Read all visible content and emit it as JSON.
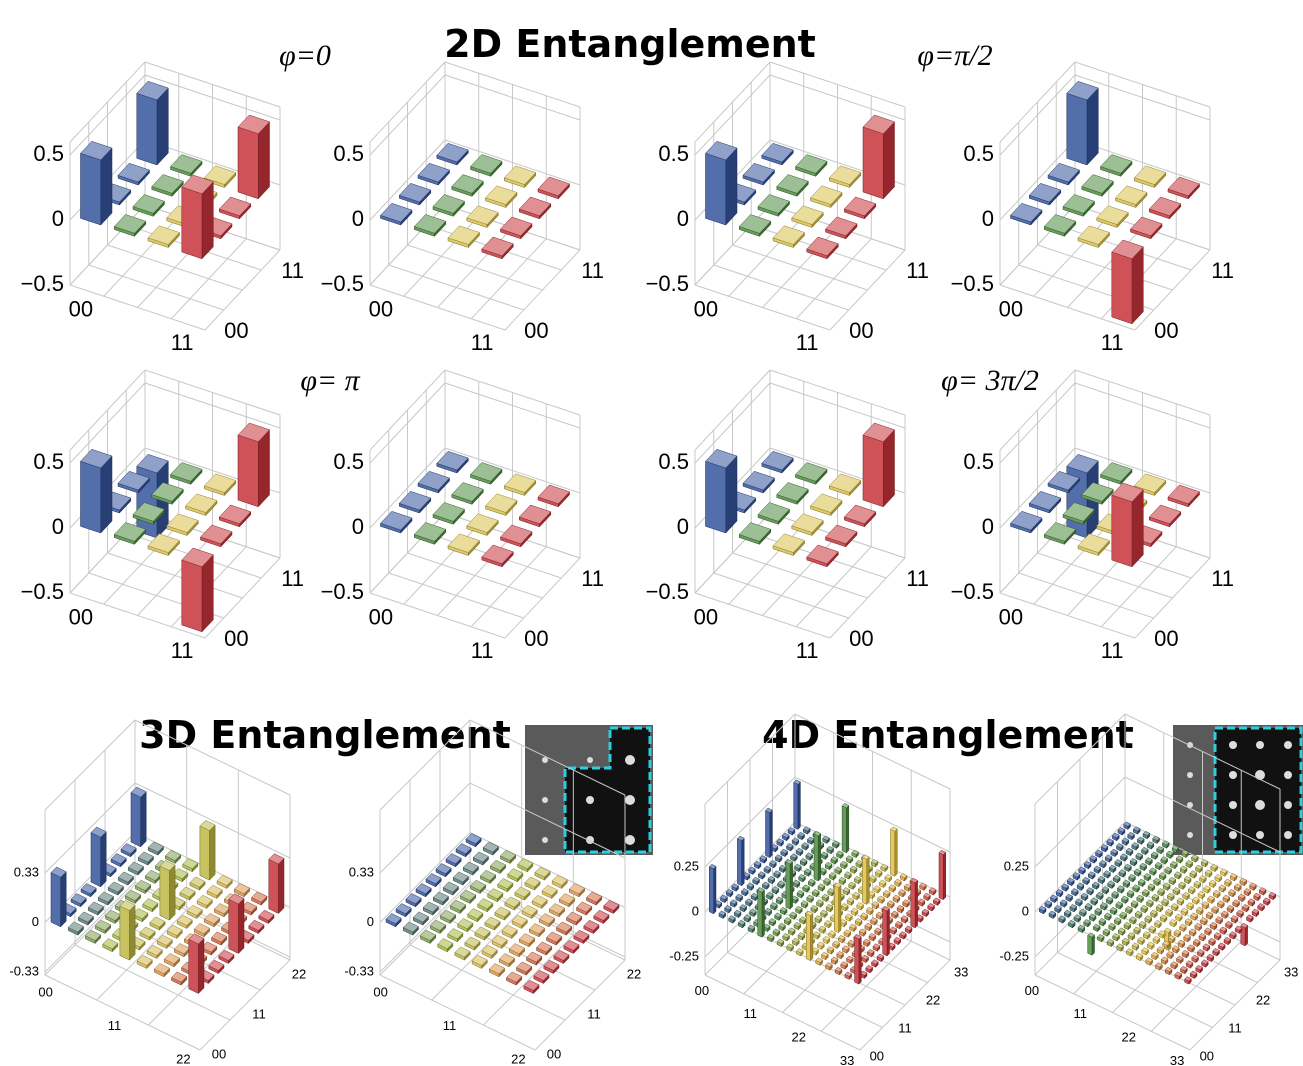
{
  "headings": [
    "2D Entanglement",
    "3D Entanglement",
    "4D Entanglement"
  ],
  "chart_data": [
    {
      "type": "bar3d",
      "title": "φ=0",
      "categories": [
        "00",
        null,
        null,
        "11"
      ],
      "zlim": [
        -0.5,
        0.6
      ],
      "zticks": [
        {
          "value": -0.5,
          "label": "−0.5"
        },
        0,
        0.5
      ],
      "colors": [
        "#34549c",
        "#4d8a3f",
        "#d9c04a",
        "#c7343a"
      ],
      "values": [
        [
          0.5,
          0,
          0,
          0.5
        ],
        [
          0,
          0,
          0,
          0
        ],
        [
          0,
          0,
          0,
          0
        ],
        [
          0.5,
          0,
          0,
          0.5
        ]
      ]
    },
    {
      "type": "bar3d",
      "categories": [
        "00",
        null,
        null,
        "11"
      ],
      "zlim": [
        -0.5,
        0.6
      ],
      "zticks": [
        {
          "value": -0.5,
          "label": "−0.5"
        },
        0,
        0.5
      ],
      "colors": [
        "#34549c",
        "#4d8a3f",
        "#d9c04a",
        "#c7343a"
      ],
      "values": [
        [
          0,
          0,
          0,
          0
        ],
        [
          0,
          0,
          0,
          0
        ],
        [
          0,
          0,
          0,
          0
        ],
        [
          0,
          0,
          0,
          0
        ]
      ]
    },
    {
      "type": "bar3d",
      "title": "φ=π/2",
      "categories": [
        "00",
        null,
        null,
        "11"
      ],
      "zlim": [
        -0.5,
        0.6
      ],
      "zticks": [
        {
          "value": -0.5,
          "label": "−0.5"
        },
        0,
        0.5
      ],
      "colors": [
        "#34549c",
        "#4d8a3f",
        "#d9c04a",
        "#c7343a"
      ],
      "values": [
        [
          0.5,
          0,
          0,
          0
        ],
        [
          0,
          0,
          0,
          0
        ],
        [
          0,
          0,
          0,
          0
        ],
        [
          0,
          0,
          0,
          0.5
        ]
      ]
    },
    {
      "type": "bar3d",
      "categories": [
        "00",
        null,
        null,
        "11"
      ],
      "zlim": [
        -0.5,
        0.6
      ],
      "zticks": [
        {
          "value": -0.5,
          "label": "−0.5"
        },
        0,
        0.5
      ],
      "colors": [
        "#34549c",
        "#4d8a3f",
        "#d9c04a",
        "#c7343a"
      ],
      "values": [
        [
          0,
          0,
          0,
          0.5
        ],
        [
          0,
          0,
          0,
          0
        ],
        [
          0,
          0,
          0,
          0
        ],
        [
          -0.5,
          0,
          0,
          0
        ]
      ]
    },
    {
      "type": "bar3d",
      "title": "φ= π",
      "categories": [
        "00",
        null,
        null,
        "11"
      ],
      "zlim": [
        -0.5,
        0.6
      ],
      "zticks": [
        {
          "value": -0.5,
          "label": "−0.5"
        },
        0,
        0.5
      ],
      "colors": [
        "#34549c",
        "#4d8a3f",
        "#d9c04a",
        "#c7343a"
      ],
      "values": [
        [
          0.5,
          0,
          0,
          -0.5
        ],
        [
          0,
          0,
          0,
          0
        ],
        [
          0,
          0,
          0,
          0
        ],
        [
          -0.5,
          0,
          0,
          0.5
        ]
      ]
    },
    {
      "type": "bar3d",
      "categories": [
        "00",
        null,
        null,
        "11"
      ],
      "zlim": [
        -0.5,
        0.6
      ],
      "zticks": [
        {
          "value": -0.5,
          "label": "−0.5"
        },
        0,
        0.5
      ],
      "colors": [
        "#34549c",
        "#4d8a3f",
        "#d9c04a",
        "#c7343a"
      ],
      "values": [
        [
          0,
          0,
          0,
          0
        ],
        [
          0,
          0,
          0,
          0
        ],
        [
          0,
          0,
          0,
          0
        ],
        [
          0,
          0,
          0,
          0
        ]
      ]
    },
    {
      "type": "bar3d",
      "title": "φ= 3π/2",
      "categories": [
        "00",
        null,
        null,
        "11"
      ],
      "zlim": [
        -0.5,
        0.6
      ],
      "zticks": [
        {
          "value": -0.5,
          "label": "−0.5"
        },
        0,
        0.5
      ],
      "colors": [
        "#34549c",
        "#4d8a3f",
        "#d9c04a",
        "#c7343a"
      ],
      "values": [
        [
          0.5,
          0,
          0,
          0
        ],
        [
          0,
          0,
          0,
          0
        ],
        [
          0,
          0,
          0,
          0
        ],
        [
          0,
          0,
          0,
          0.5
        ]
      ]
    },
    {
      "type": "bar3d",
      "categories": [
        "00",
        null,
        null,
        "11"
      ],
      "zlim": [
        -0.5,
        0.6
      ],
      "zticks": [
        {
          "value": -0.5,
          "label": "−0.5"
        },
        0,
        0.5
      ],
      "colors": [
        "#34549c",
        "#4d8a3f",
        "#d9c04a",
        "#c7343a"
      ],
      "values": [
        [
          0,
          0,
          0,
          -0.5
        ],
        [
          0,
          0,
          0,
          0
        ],
        [
          0,
          0,
          0,
          0
        ],
        [
          0.5,
          0,
          0,
          0
        ]
      ]
    },
    {
      "type": "bar3d",
      "categories": [
        "00",
        null,
        null,
        null,
        "11",
        null,
        null,
        null,
        "22"
      ],
      "zlim": [
        -0.35,
        0.75
      ],
      "zticks": [
        {
          "value": -0.33,
          "label": "-0.33"
        },
        0,
        0.33
      ],
      "colors": [
        "#34549c",
        "#9ab83a",
        "#e0b850",
        "#c7343a"
      ],
      "values": [
        [
          0.33,
          0,
          0,
          0,
          0.33,
          0,
          0,
          0,
          0.33
        ],
        [
          0,
          0,
          0,
          0,
          0,
          0,
          0,
          0,
          0
        ],
        [
          0,
          0,
          0,
          0,
          0,
          0,
          0,
          0,
          0
        ],
        [
          0,
          0,
          0,
          0,
          0,
          0,
          0,
          0,
          0
        ],
        [
          0.33,
          0,
          0,
          0,
          0.33,
          0,
          0,
          0,
          0.33
        ],
        [
          0,
          0,
          0,
          0,
          0,
          0,
          0,
          0,
          0
        ],
        [
          0,
          0,
          0,
          0,
          0,
          0,
          0,
          0,
          0
        ],
        [
          0,
          0,
          0,
          0,
          0,
          0,
          0,
          0,
          0
        ],
        [
          0.33,
          0,
          0,
          0,
          0.33,
          0,
          0,
          0,
          0.33
        ]
      ]
    },
    {
      "type": "bar3d",
      "categories": [
        "00",
        null,
        null,
        null,
        "11",
        null,
        null,
        null,
        "22"
      ],
      "zlim": [
        -0.35,
        0.75
      ],
      "zticks": [
        {
          "value": -0.33,
          "label": "-0.33"
        },
        0,
        0.33
      ],
      "colors": [
        "#34549c",
        "#9ab83a",
        "#e0b850",
        "#c7343a"
      ],
      "values": [
        [
          0,
          0,
          0,
          0,
          0,
          0,
          0,
          0,
          0
        ],
        [
          0,
          0,
          0,
          0,
          0,
          0,
          0,
          0,
          0
        ],
        [
          0,
          0,
          0,
          0,
          0,
          0,
          0,
          0,
          0
        ],
        [
          0,
          0,
          0,
          0,
          0,
          0,
          0,
          0,
          0
        ],
        [
          0,
          0,
          0,
          0,
          0,
          0,
          0,
          0,
          0
        ],
        [
          0,
          0,
          0,
          0,
          0,
          0,
          0,
          0,
          0
        ],
        [
          0,
          0,
          0,
          0,
          0,
          0,
          0,
          0,
          0
        ],
        [
          0,
          0,
          0,
          0,
          0,
          0,
          0,
          0,
          0
        ],
        [
          0,
          0,
          0,
          0,
          0,
          0,
          0,
          0,
          0
        ]
      ]
    },
    {
      "type": "bar3d",
      "categories": [
        "00",
        null,
        null,
        null,
        null,
        "11",
        null,
        null,
        null,
        null,
        "22",
        null,
        null,
        null,
        null,
        "33"
      ],
      "zlim": [
        -0.35,
        0.6
      ],
      "zticks": [
        {
          "value": -0.25,
          "label": "-0.25"
        },
        0,
        0.25
      ],
      "colors": [
        "#34549c",
        "#4d8a3f",
        "#e0c040",
        "#c7343a"
      ],
      "values": [
        [
          0.25,
          0,
          0,
          0,
          0,
          0.25,
          0,
          0,
          0,
          0,
          0.25,
          0,
          0,
          0,
          0,
          0.25
        ],
        [
          0,
          0,
          0,
          0,
          0,
          0,
          0,
          0,
          0,
          0,
          0,
          0,
          0,
          0,
          0,
          0
        ],
        [
          0,
          0,
          0,
          0,
          0,
          0,
          0,
          0,
          0,
          0,
          0,
          0,
          0,
          0,
          0,
          0
        ],
        [
          0,
          0,
          0,
          0,
          0,
          0,
          0,
          0,
          0,
          0,
          0,
          0,
          0,
          0,
          0,
          0
        ],
        [
          0,
          0,
          0,
          0,
          0,
          0,
          0,
          0,
          0,
          0,
          0,
          0,
          0,
          0,
          0,
          0
        ],
        [
          0.25,
          0,
          0,
          0,
          0,
          0.25,
          0,
          0,
          0,
          0,
          0.25,
          0,
          0,
          0,
          0,
          0.25
        ],
        [
          0,
          0,
          0,
          0,
          0,
          0,
          0,
          0,
          0,
          0,
          0,
          0,
          0,
          0,
          0,
          0
        ],
        [
          0,
          0,
          0,
          0,
          0,
          0,
          0,
          0,
          0,
          0,
          0,
          0,
          0,
          0,
          0,
          0
        ],
        [
          0,
          0,
          0,
          0,
          0,
          0,
          0,
          0,
          0,
          0,
          0,
          0,
          0,
          0,
          0,
          0
        ],
        [
          0,
          0,
          0,
          0,
          0,
          0,
          0,
          0,
          0,
          0,
          0,
          0,
          0,
          0,
          0,
          0
        ],
        [
          0.25,
          0,
          0,
          0,
          0,
          0.25,
          0,
          0,
          0,
          0,
          0.25,
          0,
          0,
          0,
          0,
          0.25
        ],
        [
          0,
          0,
          0,
          0,
          0,
          0,
          0,
          0,
          0,
          0,
          0,
          0,
          0,
          0,
          0,
          0
        ],
        [
          0,
          0,
          0,
          0,
          0,
          0,
          0,
          0,
          0,
          0,
          0,
          0,
          0,
          0,
          0,
          0
        ],
        [
          0,
          0,
          0,
          0,
          0,
          0,
          0,
          0,
          0,
          0,
          0,
          0,
          0,
          0,
          0,
          0
        ],
        [
          0,
          0,
          0,
          0,
          0,
          0,
          0,
          0,
          0,
          0,
          0,
          0,
          0,
          0,
          0,
          0
        ],
        [
          0.25,
          0,
          0,
          0,
          0,
          0.25,
          0,
          0,
          0,
          0,
          0.25,
          0,
          0,
          0,
          0,
          0.25
        ]
      ]
    },
    {
      "type": "bar3d",
      "categories": [
        "00",
        null,
        null,
        null,
        null,
        "11",
        null,
        null,
        null,
        null,
        "22",
        null,
        null,
        null,
        null,
        "33"
      ],
      "zlim": [
        -0.35,
        0.6
      ],
      "zticks": [
        {
          "value": -0.25,
          "label": "-0.25"
        },
        0,
        0.25
      ],
      "colors": [
        "#34549c",
        "#4d8a3f",
        "#e0c040",
        "#c7343a"
      ],
      "values": [
        [
          0,
          0,
          0,
          0,
          0,
          0,
          0,
          0,
          0,
          0,
          0,
          0,
          0,
          0,
          0,
          0
        ],
        [
          0,
          0,
          0,
          0,
          0,
          0,
          0,
          0,
          0,
          0,
          0,
          0,
          0,
          0,
          0,
          0
        ],
        [
          0,
          0,
          0,
          0,
          0,
          0,
          0,
          0,
          0,
          0,
          0,
          0,
          0,
          0,
          0,
          0
        ],
        [
          0,
          0,
          0,
          0,
          0,
          0,
          0,
          0,
          0,
          0,
          0,
          0,
          0,
          0,
          0,
          0
        ],
        [
          0,
          0,
          0,
          0,
          0,
          0,
          0,
          0,
          0,
          0,
          0,
          0,
          0,
          0,
          0,
          0
        ],
        [
          -0.1,
          0,
          0,
          0,
          0,
          0,
          0,
          0,
          0,
          0,
          0,
          0,
          0,
          0,
          0,
          0
        ],
        [
          0,
          0,
          0,
          0,
          0,
          0,
          0,
          0,
          0,
          0,
          0,
          0,
          0,
          0,
          0,
          0
        ],
        [
          0,
          0,
          0,
          0,
          0,
          0,
          0,
          0,
          0,
          0,
          0,
          0,
          0,
          0,
          0,
          0
        ],
        [
          0,
          0,
          0,
          0,
          0,
          0,
          0,
          0,
          0,
          0,
          0,
          0,
          0,
          0,
          0,
          0
        ],
        [
          0,
          0,
          0,
          0,
          0,
          0,
          0,
          0,
          0,
          0,
          0,
          0,
          0,
          0,
          0,
          0
        ],
        [
          0,
          0,
          0,
          0,
          0,
          -0.1,
          0,
          0,
          0,
          0,
          0,
          0,
          0,
          0,
          0,
          0
        ],
        [
          0,
          0,
          0,
          0,
          0,
          0,
          0,
          0,
          0,
          0,
          0,
          0,
          0,
          0,
          0,
          0
        ],
        [
          0,
          0,
          0,
          0,
          0,
          0,
          0,
          0,
          0,
          0,
          0,
          0,
          0,
          0,
          0,
          0
        ],
        [
          0,
          0,
          0,
          0,
          0,
          0,
          0,
          0,
          0,
          0,
          0,
          0,
          0,
          0,
          0,
          0
        ],
        [
          0,
          0,
          0,
          0,
          0,
          0,
          0,
          0,
          0,
          0,
          0,
          0,
          0,
          0,
          0,
          0
        ],
        [
          0,
          0,
          0,
          0,
          0,
          0,
          0,
          0,
          0,
          0,
          -0.1,
          0,
          0,
          0,
          0,
          0
        ]
      ]
    }
  ]
}
